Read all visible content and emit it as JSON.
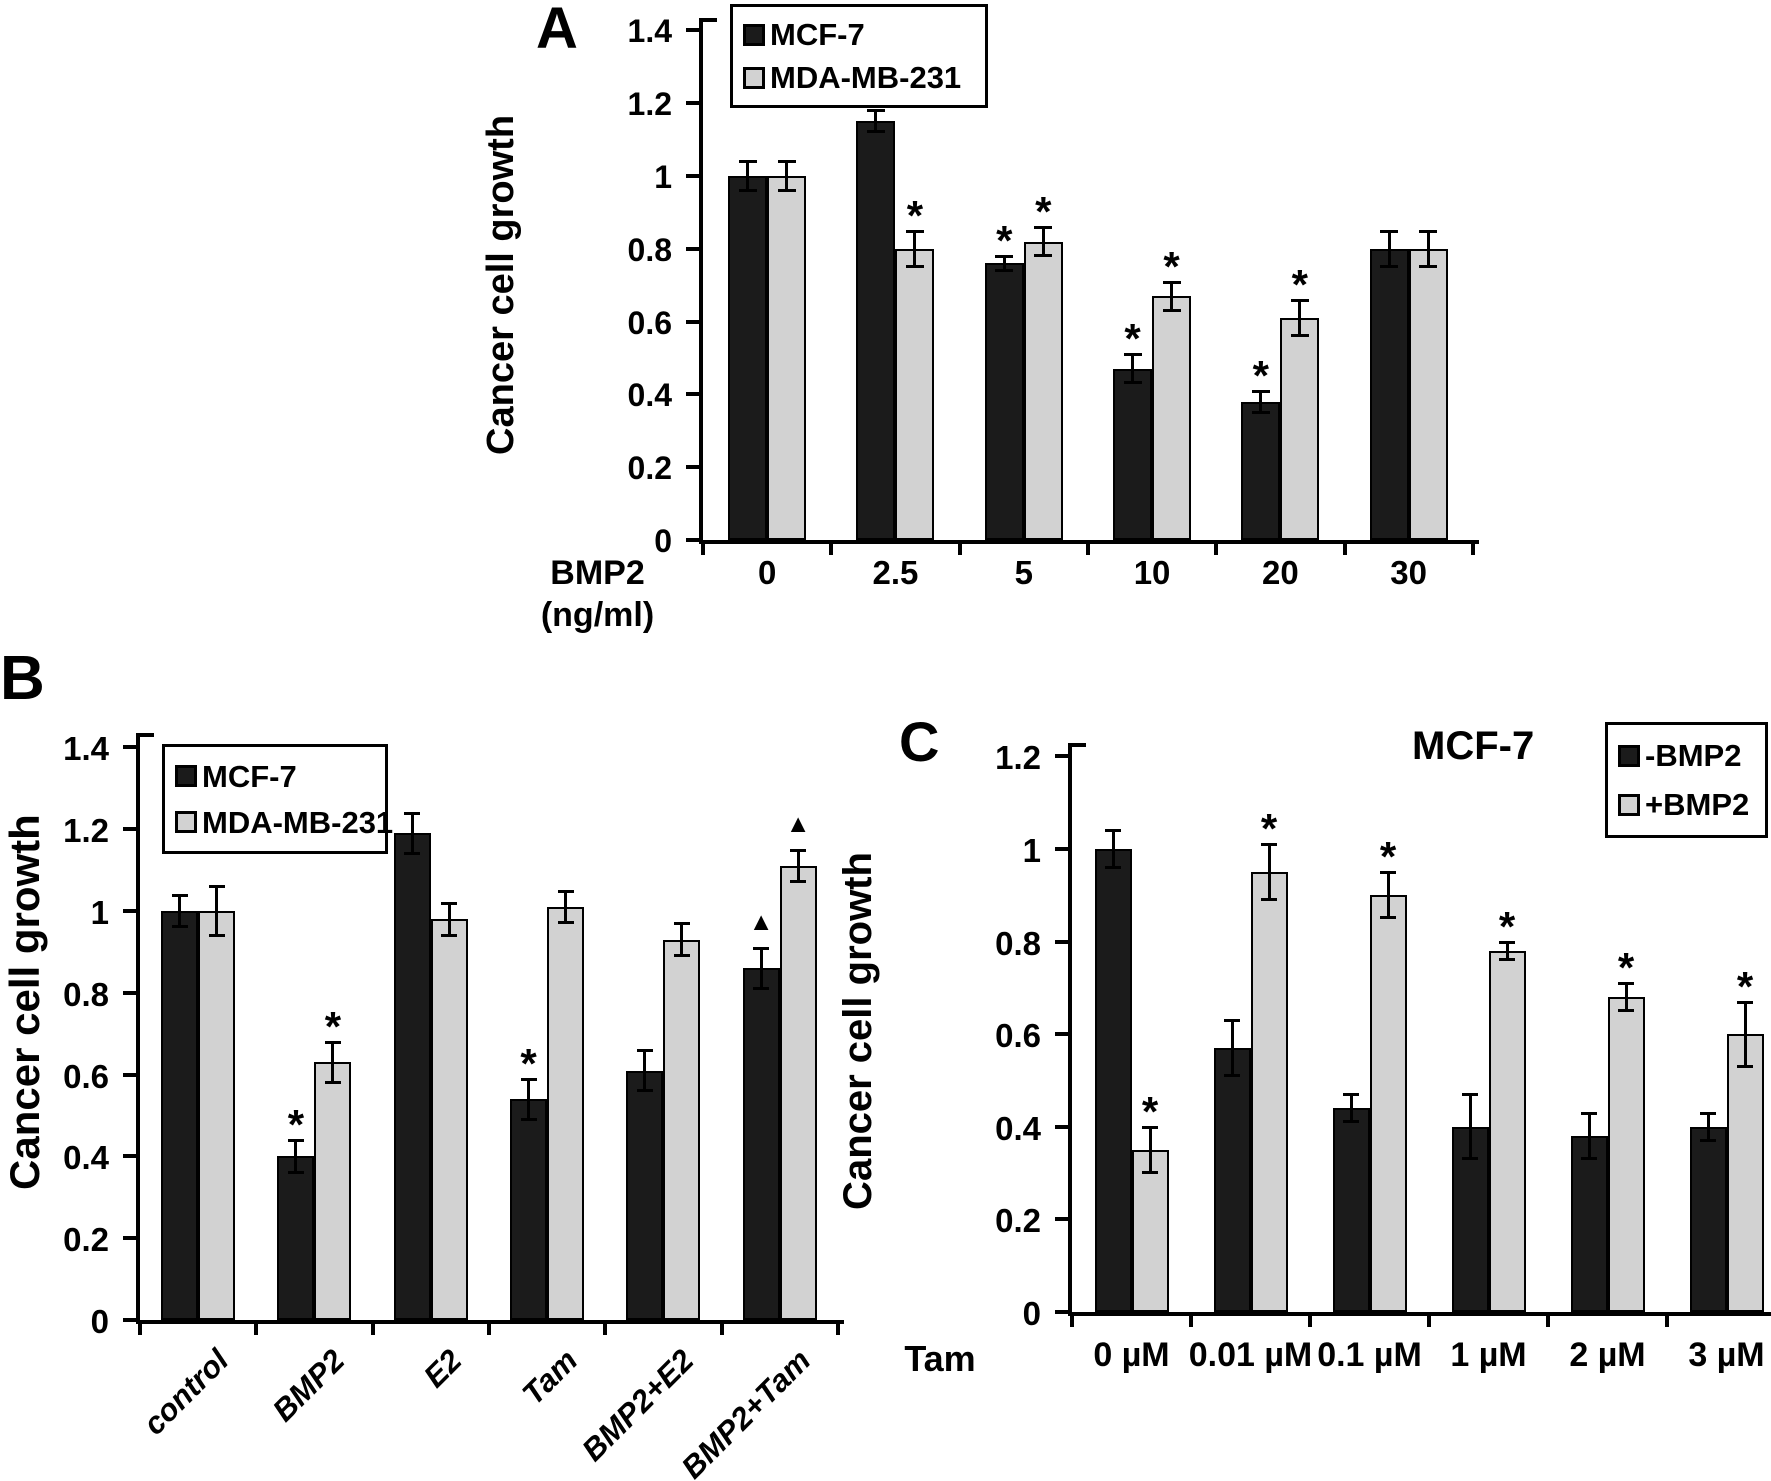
{
  "colors": {
    "dark_series_fill": "#1b1b1b",
    "light_series_fill": "#d2d2d2",
    "axis": "#000000",
    "background": "#ffffff"
  },
  "chart_data": [
    {
      "panel_label": "A",
      "type": "bar",
      "title": "",
      "ylabel": "Cancer cell growth",
      "xlabel": "BMP2 (ng/ml)",
      "xlabel_line1": "BMP2",
      "xlabel_line2": "(ng/ml)",
      "ylim": [
        0,
        1.4
      ],
      "ytick_step": 0.2,
      "yticks": [
        "1.4",
        "1.2",
        "1",
        "0.8",
        "0.6",
        "0.4",
        "0.2",
        "0"
      ],
      "grid": false,
      "legend_position": "top-left-inside",
      "categories": [
        "0",
        "2.5",
        "5",
        "10",
        "20",
        "30"
      ],
      "series": [
        {
          "name": "MCF-7",
          "swatch": "dark",
          "values": [
            1.0,
            1.15,
            0.76,
            0.47,
            0.38,
            0.8
          ],
          "errors": [
            0.04,
            0.03,
            0.02,
            0.04,
            0.03,
            0.05
          ],
          "markers": [
            "",
            "",
            "*",
            "*",
            "*",
            ""
          ]
        },
        {
          "name": "MDA-MB-231",
          "swatch": "light",
          "values": [
            1.0,
            0.8,
            0.82,
            0.67,
            0.61,
            0.8
          ],
          "errors": [
            0.04,
            0.05,
            0.04,
            0.04,
            0.05,
            0.05
          ],
          "markers": [
            "",
            "*",
            "*",
            "*",
            "*",
            ""
          ]
        }
      ]
    },
    {
      "panel_label": "B",
      "type": "bar",
      "title": "",
      "ylabel": "Cancer cell growth",
      "xlabel": "",
      "ylim": [
        0,
        1.4
      ],
      "ytick_step": 0.2,
      "yticks": [
        "1.4",
        "1.2",
        "1",
        "0.8",
        "0.6",
        "0.4",
        "0.2",
        "0"
      ],
      "grid": false,
      "legend_position": "top-left-inside",
      "categories": [
        "control",
        "BMP2",
        "E2",
        "Tam",
        "BMP2+E2",
        "BMP2+Tam"
      ],
      "series": [
        {
          "name": "MCF-7",
          "swatch": "dark",
          "values": [
            1.0,
            0.4,
            1.19,
            0.54,
            0.61,
            0.86
          ],
          "errors": [
            0.04,
            0.04,
            0.05,
            0.05,
            0.05,
            0.05
          ],
          "markers": [
            "",
            "*",
            "",
            "*",
            "",
            "▲"
          ]
        },
        {
          "name": "MDA-MB-231",
          "swatch": "light",
          "values": [
            1.0,
            0.63,
            0.98,
            1.01,
            0.93,
            1.11
          ],
          "errors": [
            0.06,
            0.05,
            0.04,
            0.04,
            0.04,
            0.04
          ],
          "markers": [
            "",
            "*",
            "",
            "",
            "",
            "▲"
          ]
        }
      ]
    },
    {
      "panel_label": "C",
      "type": "bar",
      "title": "MCF-7",
      "ylabel": "Cancer cell growth",
      "xlabel": "Tam",
      "x_prefix": "Tam",
      "ylim": [
        0,
        1.2
      ],
      "ytick_step": 0.2,
      "yticks": [
        "1.2",
        "1",
        "0.8",
        "0.6",
        "0.4",
        "0.2",
        "0"
      ],
      "grid": false,
      "legend_position": "top-right-outside",
      "categories": [
        "0 µM",
        "0.01 µM",
        "0.1 µM",
        "1 µM",
        "2 µM",
        "3 µM"
      ],
      "series": [
        {
          "name": "-BMP2",
          "swatch": "dark",
          "values": [
            1.0,
            0.57,
            0.44,
            0.4,
            0.38,
            0.4
          ],
          "errors": [
            0.04,
            0.06,
            0.03,
            0.07,
            0.05,
            0.03
          ],
          "markers": [
            "",
            "",
            "",
            "",
            "",
            ""
          ]
        },
        {
          "name": "+BMP2",
          "swatch": "light",
          "values": [
            0.35,
            0.95,
            0.9,
            0.78,
            0.68,
            0.6
          ],
          "errors": [
            0.05,
            0.06,
            0.05,
            0.02,
            0.03,
            0.07
          ],
          "markers": [
            "*",
            "*",
            "*",
            "*",
            "*",
            "*"
          ]
        }
      ]
    }
  ]
}
